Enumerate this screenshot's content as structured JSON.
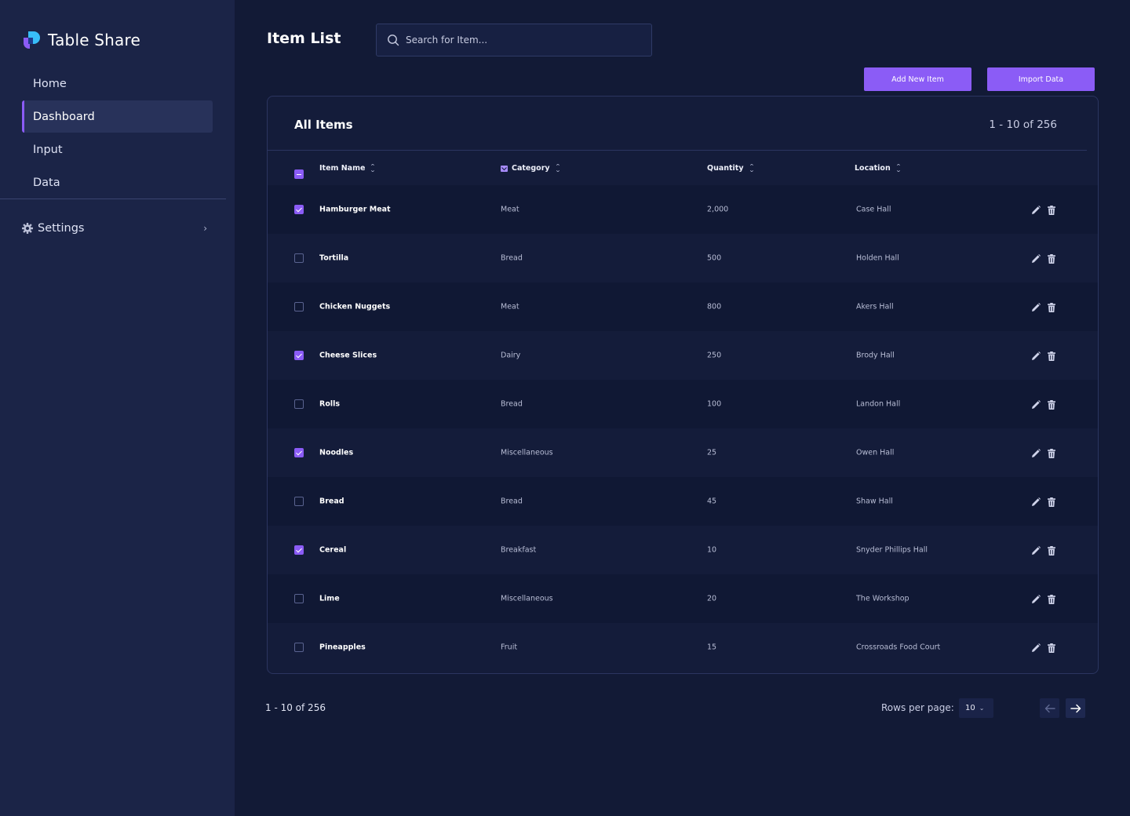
{
  "brand": {
    "name": "Table Share"
  },
  "sidebar": {
    "items": [
      {
        "label": "Home",
        "active": false
      },
      {
        "label": "Dashboard",
        "active": true
      },
      {
        "label": "Input",
        "active": false
      },
      {
        "label": "Data",
        "active": false
      }
    ],
    "settings_label": "Settings"
  },
  "header": {
    "title": "Item List",
    "search_placeholder": "Search for Item...",
    "add_button": "Add New Item",
    "import_button": "Import Data"
  },
  "card": {
    "title": "All Items",
    "count": "1 - 10 of 256",
    "columns": [
      "Item Name",
      "Category",
      "Quantity",
      "Location"
    ],
    "rows": [
      {
        "name": "Hamburger Meat",
        "category": "Meat",
        "quantity": "2,000",
        "location": "Case Hall",
        "checked": true
      },
      {
        "name": "Tortilla",
        "category": "Bread",
        "quantity": "500",
        "location": "Holden Hall",
        "checked": false
      },
      {
        "name": "Chicken Nuggets",
        "category": "Meat",
        "quantity": "800",
        "location": "Akers Hall",
        "checked": false
      },
      {
        "name": "Cheese Slices",
        "category": "Dairy",
        "quantity": "250",
        "location": "Brody Hall",
        "checked": true
      },
      {
        "name": "Rolls",
        "category": "Bread",
        "quantity": "100",
        "location": "Landon Hall",
        "checked": false
      },
      {
        "name": "Noodles",
        "category": "Miscellaneous",
        "quantity": "25",
        "location": "Owen Hall",
        "checked": true
      },
      {
        "name": "Bread",
        "category": "Bread",
        "quantity": "45",
        "location": "Shaw Hall",
        "checked": false
      },
      {
        "name": "Cereal",
        "category": "Breakfast",
        "quantity": "10",
        "location": "Snyder Phillips Hall",
        "checked": true
      },
      {
        "name": "Lime",
        "category": "Miscellaneous",
        "quantity": "20",
        "location": "The Workshop",
        "checked": false
      },
      {
        "name": "Pineapples",
        "category": "Fruit",
        "quantity": "15",
        "location": "Crossroads Food Court",
        "checked": false
      }
    ]
  },
  "footer": {
    "count": "1 - 10 of 256",
    "rows_per_page_label": "Rows per page:",
    "rows_per_page_value": "10"
  },
  "icons": {
    "logo": "table-share-logo",
    "search": "search-icon",
    "settings": "gear-icon",
    "edit": "pencil-icon",
    "delete": "trash-icon",
    "prev": "arrow-left-icon",
    "next": "arrow-right-icon"
  },
  "colors": {
    "accent": "#8b5cf6",
    "sidebar_bg": "#1b2447",
    "page_bg": "#121a36",
    "logo_blue": "#38bdf8"
  }
}
